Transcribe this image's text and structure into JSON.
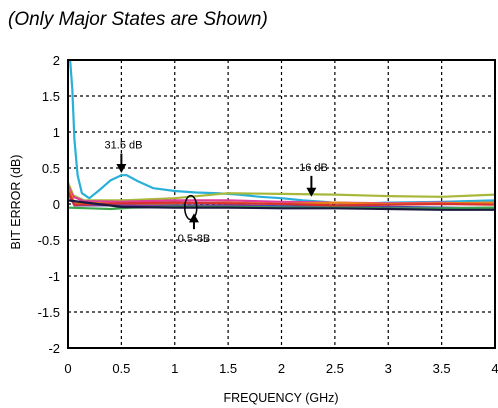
{
  "chart_data": {
    "type": "line",
    "title": "",
    "subtitle": "(Only Major States are Shown)",
    "xlabel": "FREQUENCY (GHz)",
    "ylabel": "BIT ERROR (dB)",
    "xlim": [
      0,
      4
    ],
    "ylim": [
      -2,
      2
    ],
    "xticks": [
      "0",
      "0.5",
      "1",
      "1.5",
      "2",
      "2.5",
      "3",
      "3.5",
      "4"
    ],
    "yticks": [
      "2",
      "1.5",
      "1",
      "0.5",
      "0",
      "-0.5",
      "-1",
      "-1.5",
      "-2"
    ],
    "grid": true,
    "series": [
      {
        "color": "#2ab0d8",
        "points": [
          [
            0.02,
            2.0
          ],
          [
            0.04,
            1.6
          ],
          [
            0.06,
            0.9
          ],
          [
            0.09,
            0.4
          ],
          [
            0.13,
            0.15
          ],
          [
            0.2,
            0.08
          ],
          [
            0.3,
            0.2
          ],
          [
            0.4,
            0.33
          ],
          [
            0.5,
            0.4
          ],
          [
            0.55,
            0.4
          ],
          [
            0.65,
            0.32
          ],
          [
            0.8,
            0.22
          ],
          [
            1.0,
            0.18
          ],
          [
            1.2,
            0.16
          ],
          [
            1.4,
            0.15
          ],
          [
            1.6,
            0.13
          ],
          [
            1.8,
            0.1
          ],
          [
            2.0,
            0.08
          ],
          [
            2.2,
            0.05
          ],
          [
            2.4,
            0.03
          ],
          [
            2.6,
            0.0
          ],
          [
            3.0,
            0.02
          ],
          [
            3.5,
            0.03
          ],
          [
            4.0,
            0.05
          ]
        ]
      },
      {
        "color": "#a8b83a",
        "points": [
          [
            0.0,
            0.3
          ],
          [
            0.05,
            0.12
          ],
          [
            0.15,
            0.05
          ],
          [
            0.5,
            0.05
          ],
          [
            1.0,
            0.08
          ],
          [
            1.5,
            0.15
          ],
          [
            2.0,
            0.14
          ],
          [
            2.5,
            0.13
          ],
          [
            3.0,
            0.11
          ],
          [
            3.5,
            0.1
          ],
          [
            4.0,
            0.13
          ]
        ]
      },
      {
        "color": "#e03a9a",
        "points": [
          [
            0.0,
            0.25
          ],
          [
            0.05,
            0.1
          ],
          [
            0.15,
            0.04
          ],
          [
            0.5,
            0.03
          ],
          [
            1.0,
            0.05
          ],
          [
            1.5,
            0.05
          ],
          [
            2.0,
            0.03
          ],
          [
            2.5,
            0.02
          ],
          [
            3.0,
            0.01
          ],
          [
            3.5,
            0.02
          ],
          [
            4.0,
            0.0
          ]
        ]
      },
      {
        "color": "#3a4fb8",
        "points": [
          [
            0.0,
            0.2
          ],
          [
            0.06,
            0.0
          ],
          [
            0.5,
            -0.01
          ],
          [
            1.0,
            -0.02
          ],
          [
            1.5,
            -0.02
          ],
          [
            2.0,
            -0.03
          ],
          [
            2.5,
            -0.03
          ],
          [
            3.0,
            -0.04
          ],
          [
            3.5,
            -0.05
          ],
          [
            4.0,
            -0.06
          ]
        ]
      },
      {
        "color": "#e8821a",
        "points": [
          [
            0.0,
            0.22
          ],
          [
            0.06,
            0.02
          ],
          [
            0.5,
            0.0
          ],
          [
            1.0,
            0.01
          ],
          [
            1.5,
            0.02
          ],
          [
            2.0,
            0.0
          ],
          [
            2.5,
            0.02
          ],
          [
            3.0,
            0.0
          ],
          [
            3.5,
            0.01
          ],
          [
            4.0,
            0.02
          ]
        ]
      },
      {
        "color": "#7a3fa0",
        "points": [
          [
            0.0,
            0.15
          ],
          [
            0.06,
            -0.02
          ],
          [
            0.5,
            -0.02
          ],
          [
            1.0,
            -0.03
          ],
          [
            1.5,
            -0.02
          ],
          [
            2.0,
            -0.05
          ],
          [
            2.5,
            -0.04
          ],
          [
            3.0,
            -0.05
          ],
          [
            3.5,
            -0.06
          ],
          [
            4.0,
            -0.05
          ]
        ]
      },
      {
        "color": "#d93030",
        "points": [
          [
            0.0,
            0.18
          ],
          [
            0.06,
            -0.01
          ],
          [
            0.5,
            0.01
          ],
          [
            1.0,
            0.02
          ],
          [
            1.5,
            0.01
          ],
          [
            2.0,
            0.0
          ],
          [
            2.5,
            -0.02
          ],
          [
            3.0,
            -0.01
          ],
          [
            3.5,
            0.0
          ],
          [
            4.0,
            -0.01
          ]
        ]
      },
      {
        "color": "#3aa84a",
        "points": [
          [
            0.0,
            -0.05
          ],
          [
            0.2,
            -0.06
          ],
          [
            0.4,
            -0.07
          ],
          [
            0.6,
            -0.05
          ],
          [
            1.0,
            -0.04
          ],
          [
            1.5,
            -0.04
          ],
          [
            2.0,
            -0.05
          ],
          [
            2.5,
            -0.05
          ],
          [
            3.0,
            -0.06
          ],
          [
            3.5,
            -0.06
          ],
          [
            4.0,
            -0.05
          ]
        ]
      },
      {
        "color": "#1a1a40",
        "points": [
          [
            0.0,
            0.05
          ],
          [
            0.5,
            -0.04
          ],
          [
            1.0,
            -0.05
          ],
          [
            1.5,
            -0.05
          ],
          [
            2.0,
            -0.06
          ],
          [
            2.5,
            -0.06
          ],
          [
            3.0,
            -0.07
          ],
          [
            3.5,
            -0.08
          ],
          [
            4.0,
            -0.08
          ]
        ]
      }
    ],
    "annotations": [
      {
        "text": "31.5 dB",
        "label_at": [
          0.52,
          0.77
        ],
        "arrow_to": [
          0.5,
          0.43
        ]
      },
      {
        "text": "16 dB",
        "label_at": [
          2.3,
          0.46
        ],
        "arrow_to": [
          2.28,
          0.1
        ]
      },
      {
        "text": "0.5-8B",
        "label_at": [
          1.18,
          -0.53
        ],
        "arrow_to": [
          1.18,
          -0.13
        ]
      }
    ],
    "ellipse_at": [
      1.15,
      -0.05
    ]
  }
}
